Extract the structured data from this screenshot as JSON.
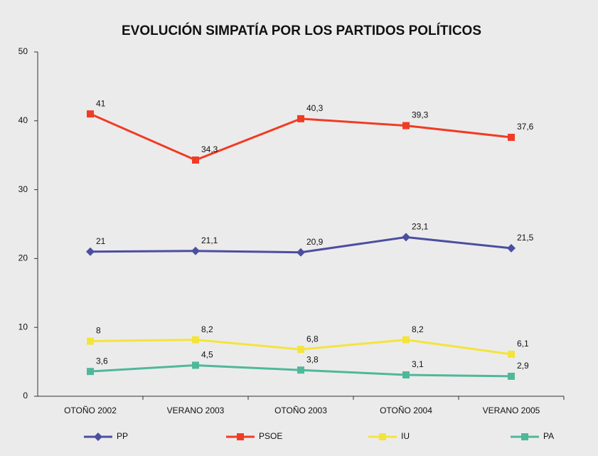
{
  "chart_data": {
    "type": "line",
    "title": "EVOLUCIÓN SIMPATÍA POR LOS PARTIDOS POLÍTICOS",
    "categories": [
      "OTOÑO 2002",
      "VERANO 2003",
      "OTOÑO 2003",
      "OTOÑO 2004",
      "VERANO 2005"
    ],
    "series": [
      {
        "name": "PP",
        "color": "#4b4fa0",
        "marker": "diamond",
        "values": [
          21,
          21.1,
          20.9,
          23.1,
          21.5
        ],
        "value_labels": [
          "21",
          "21,1",
          "20,9",
          "23,1",
          "21,5"
        ]
      },
      {
        "name": "PSOE",
        "color": "#f03c24",
        "marker": "square",
        "values": [
          41,
          34.3,
          40.3,
          39.3,
          37.6
        ],
        "value_labels": [
          "41",
          "34,3",
          "40,3",
          "39,3",
          "37,6"
        ]
      },
      {
        "name": "IU",
        "color": "#f3e43c",
        "marker": "square",
        "values": [
          8,
          8.2,
          6.8,
          8.2,
          6.1
        ],
        "value_labels": [
          "8",
          "8,2",
          "6,8",
          "8,2",
          "6,1"
        ]
      },
      {
        "name": "PA",
        "color": "#4fb89a",
        "marker": "square",
        "values": [
          3.6,
          4.5,
          3.8,
          3.1,
          2.9
        ],
        "value_labels": [
          "3,6",
          "4,5",
          "3,8",
          "3,1",
          "2,9"
        ]
      }
    ],
    "ylim": [
      0,
      50
    ],
    "yticks": [
      0,
      10,
      20,
      30,
      40,
      50
    ],
    "grid": false,
    "legend": "bottom"
  }
}
